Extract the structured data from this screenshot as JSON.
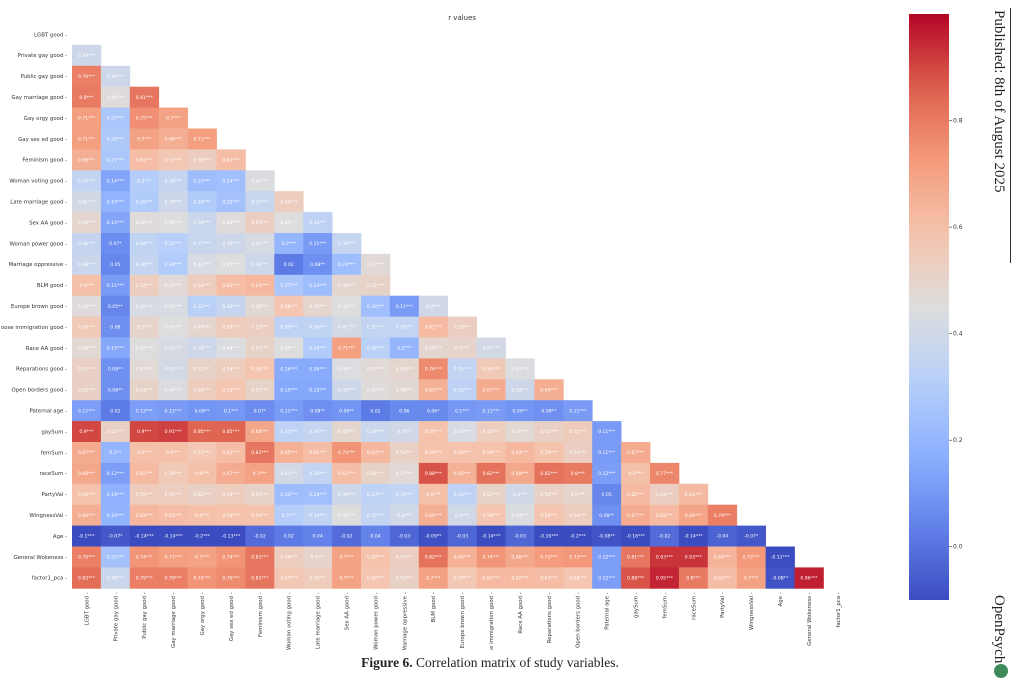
{
  "page": {
    "caption_label": "Figure 6.",
    "caption_text": " Correlation matrix of study variables.",
    "published": "Published: 8th of August 2025",
    "brand": "OpenPsych"
  },
  "chart_data": {
    "type": "heatmap",
    "title": "r values",
    "variables": [
      "LGBT good",
      "Private gay good",
      "Public gay good",
      "Gay marriage good",
      "Gay orgy good",
      "Gay sex ed good",
      "Feminism good",
      "Woman voting good",
      "Late marriage good",
      "Sex AA good",
      "Woman power good",
      "Marriage oppressive",
      "BLM good",
      "Europe brown good",
      "Loose immigration good",
      "Race AA good",
      "Reparations good",
      "Open borders good",
      "Paternal age",
      "gaySum",
      "femSum",
      "raceSum",
      "PartyVal",
      "WingnessVal",
      "Age",
      "General Wokeness",
      "factor1_pca"
    ],
    "row_labels": [
      "LGBT good",
      "Private gay good",
      "Public gay good",
      "Gay marriage good",
      "Gay orgy good",
      "Gay sex ed good",
      "Feminism good",
      "Woman voting good",
      "Late marriage good",
      "Sex AA good",
      "Woman power good",
      "Marriage oppressive",
      "BLM good",
      "Europe brown good",
      "oose immigration good",
      "Race AA good",
      "Reparations good",
      "Open borders good",
      "Paternal age",
      "gaySum",
      "femSum",
      "raceSum",
      "PartyVal",
      "WingnessVal",
      "Age",
      "General Wokeness",
      "factor1_pca"
    ],
    "col_labels": [
      "LGBT good",
      "Private gay good",
      "Public gay good",
      "Gay marriage good",
      "Gay orgy good",
      "Gay sex ed good",
      "Feminism good",
      "Woman voting good",
      "Late marriage good",
      "Sex AA good",
      "Woman power good",
      "Marriage oppressive",
      "BLM good",
      "Europe brown good",
      "Loose immigration good",
      "Race AA good",
      "Reparations good",
      "Open borders good",
      "Paternal age",
      "gaySum",
      "femSum",
      "raceSum",
      "PartyVal",
      "WingnessVal",
      "Age",
      "General Wokeness",
      "factor1_pca"
    ],
    "cells": [
      [
        "0.39***"
      ],
      [
        "0.79***",
        "0.39***"
      ],
      [
        "0.8***",
        "0.46***",
        "0.81***"
      ],
      [
        "0.71***",
        "0.27***",
        "0.75***",
        "0.7***"
      ],
      [
        "0.71***",
        "0.28***",
        "0.7***",
        "0.66***",
        "0.71***"
      ],
      [
        "0.66***",
        "0.27***",
        "0.61***",
        "0.57***",
        "0.53***",
        "0.61***"
      ],
      [
        "0.35***",
        "0.14***",
        "0.3***",
        "0.36***",
        "0.23***",
        "0.24***",
        "0.44***"
      ],
      [
        "0.41***",
        "0.19***",
        "0.29***",
        "0.39***",
        "0.29***",
        "0.25***",
        "0.37***",
        "0.54***"
      ],
      [
        "0.49***",
        "0.14***",
        "0.46***",
        "0.45***",
        "0.38***",
        "0.46***",
        "0.53***",
        "0.45***",
        "0.33***"
      ],
      [
        "0.36***",
        "0.07*",
        "0.34***",
        "0.31***",
        "0.37***",
        "0.39***",
        "0.42***",
        "0.2***",
        "0.11***",
        "0.36***"
      ],
      [
        "0.38***",
        "0.05",
        "0.36***",
        "0.29***",
        "0.43***",
        "0.45***",
        "0.39***",
        "0.02",
        "0.08**",
        "0.23***",
        "0.47***"
      ],
      [
        "0.6***",
        "0.11***",
        "0.54***",
        "0.47***",
        "0.54***",
        "0.61***",
        "0.63***",
        "0.27***",
        "0.23***",
        "0.49***",
        "0.51***"
      ],
      [
        "0.46***",
        "0.05**",
        "0.42***",
        "0.43***",
        "0.32***",
        "0.36***",
        "0.48***",
        "0.58***",
        "0.49***",
        "0.45***",
        "0.24***",
        "0.11***",
        "0.4***"
      ],
      [
        "0.56***",
        "0.08",
        "0.5***",
        "0.45***",
        "0.49***",
        "0.55***",
        "0.53***",
        "0.33***",
        "0.34***",
        "0.41***",
        "0.35***",
        "0.35***",
        "0.62***",
        "0.53***"
      ],
      [
        "0.48***",
        "0.15***",
        "0.45***",
        "0.42***",
        "0.39***",
        "0.44***",
        "0.51***",
        "0.45***",
        "0.29***",
        "0.71***",
        "0.32***",
        "0.2***",
        "0.49***",
        "0.5***",
        "0.41***"
      ],
      [
        "0.52***",
        "0.08**",
        "0.47***",
        "0.41***",
        "0.51***",
        "0.54***",
        "0.58***",
        "0.16***",
        "0.16***",
        "0.44***",
        "0.47***",
        "0.49***",
        "0.76***",
        "0.35***",
        "0.56***",
        "0.44***"
      ],
      [
        "0.52***",
        "0.08**",
        "0.51***",
        "0.44***",
        "0.54***",
        "0.58***",
        "0.51***",
        "0.15***",
        "0.15***",
        "0.39***",
        "0.46***",
        "0.48***",
        "0.65***",
        "0.33***",
        "0.67***",
        "0.39***",
        "0.66***"
      ],
      [
        "0.12***",
        "0.02",
        "0.12***",
        "0.11***",
        "0.09**",
        "0.1***",
        "0.07*",
        "0.11***",
        "0.08**",
        "0.09**",
        "0.02",
        "0.06",
        "0.06*",
        "0.1***",
        "0.11***",
        "0.09**",
        "0.08**",
        "0.11***"
      ],
      [
        "0.9***",
        "0.52***",
        "0.9***",
        "0.91***",
        "0.85***",
        "0.85***",
        "0.68***",
        "0.33***",
        "0.36***",
        "0.49***",
        "0.38***",
        "0.4***",
        "0.59***",
        "0.43***",
        "0.54***",
        "0.48***",
        "0.52***",
        "0.55***",
        "0.11***"
      ],
      [
        "0.67***",
        "0.2**",
        "0.6***",
        "0.6***",
        "0.57***",
        "0.61***",
        "0.81***",
        "0.65***",
        "0.61***",
        "0.74***",
        "0.63***",
        "0.52***",
        "0.59***",
        "0.59***",
        "0.59***",
        "0.63***",
        "0.59***",
        "0.53***",
        "0.11***",
        "0.67***"
      ],
      [
        "0.68***",
        "0.12***",
        "0.62***",
        "0.56***",
        "0.6***",
        "0.67***",
        "0.7***",
        "0.41***",
        "0.35***",
        "0.61***",
        "0.51***",
        "0.47***",
        "0.88***",
        "0.65***",
        "0.82***",
        "0.68***",
        "0.82***",
        "0.8***",
        "0.12***",
        "0.6***",
        "0.77***"
      ],
      [
        "0.59***",
        "0.18***",
        "0.55***",
        "0.54***",
        "0.52***",
        "0.54***",
        "0.51***",
        "0.23***",
        "0.24***",
        "0.39***",
        "0.33***",
        "0.35***",
        "0.6***",
        "0.33***",
        "0.51***",
        "0.4***",
        "0.52***",
        "0.5***",
        "0.05",
        "0.62***",
        "0.53***",
        "0.62***"
      ],
      [
        "0.66***",
        "0.19***",
        "0.63***",
        "0.61***",
        "0.6***",
        "0.59***",
        "0.59***",
        "0.3***",
        "0.34***",
        "0.45***",
        "0.35***",
        "0.4***",
        "0.66***",
        "0.4***",
        "0.58***",
        "0.44***",
        "0.58***",
        "0.54***",
        "0.08**",
        "0.67***",
        "0.62***",
        "0.69***",
        "0.79***"
      ],
      [
        "-0.1***",
        "-0.07*",
        "-0.14***",
        "-0.14***",
        "-0.2***",
        "-0.13***",
        "-0.02",
        "0.02",
        "0.04",
        "-0.02",
        "0.04",
        "-0.03",
        "-0.09**",
        "-0.03",
        "-0.14***",
        "-0.03",
        "-0.16***",
        "-0.2***",
        "-0.08**",
        "-0.16***",
        "-0.02",
        "-0.14***",
        "-0.04",
        "-0.07*"
      ],
      [
        "0.79***",
        "0.25***",
        "0.74***",
        "0.71***",
        "0.7***",
        "0.74***",
        "0.81***",
        "0.54***",
        "0.5***",
        "0.7***",
        "0.59***",
        "0.53***",
        "0.82***",
        "0.65***",
        "0.74***",
        "0.68***",
        "0.72***",
        "0.73***",
        "0.12***",
        "0.81***",
        "0.93***",
        "0.93***",
        "0.64***",
        "0.73***",
        "-0.11***"
      ],
      [
        "0.83***",
        "0.38***",
        "0.79***",
        "0.79***",
        "0.74***",
        "0.76***",
        "0.81***",
        "0.57***",
        "0.55***",
        "0.7***",
        "0.58***",
        "0.52***",
        "0.7***",
        "0.57***",
        "0.62***",
        "0.62***",
        "0.61***",
        "0.58***",
        "0.12***",
        "0.88***",
        "0.95***",
        "0.8***",
        "0.61***",
        "0.7***",
        "-0.08**",
        "0.96***"
      ]
    ],
    "value_range": [
      -0.1,
      1.0
    ],
    "colorbar_ticks": [
      "0.0",
      "0.2",
      "0.4",
      "0.6",
      "0.8"
    ],
    "colorbar_tick_values": [
      0.0,
      0.2,
      0.4,
      0.6,
      0.8
    ],
    "colormap": "coolwarm"
  }
}
